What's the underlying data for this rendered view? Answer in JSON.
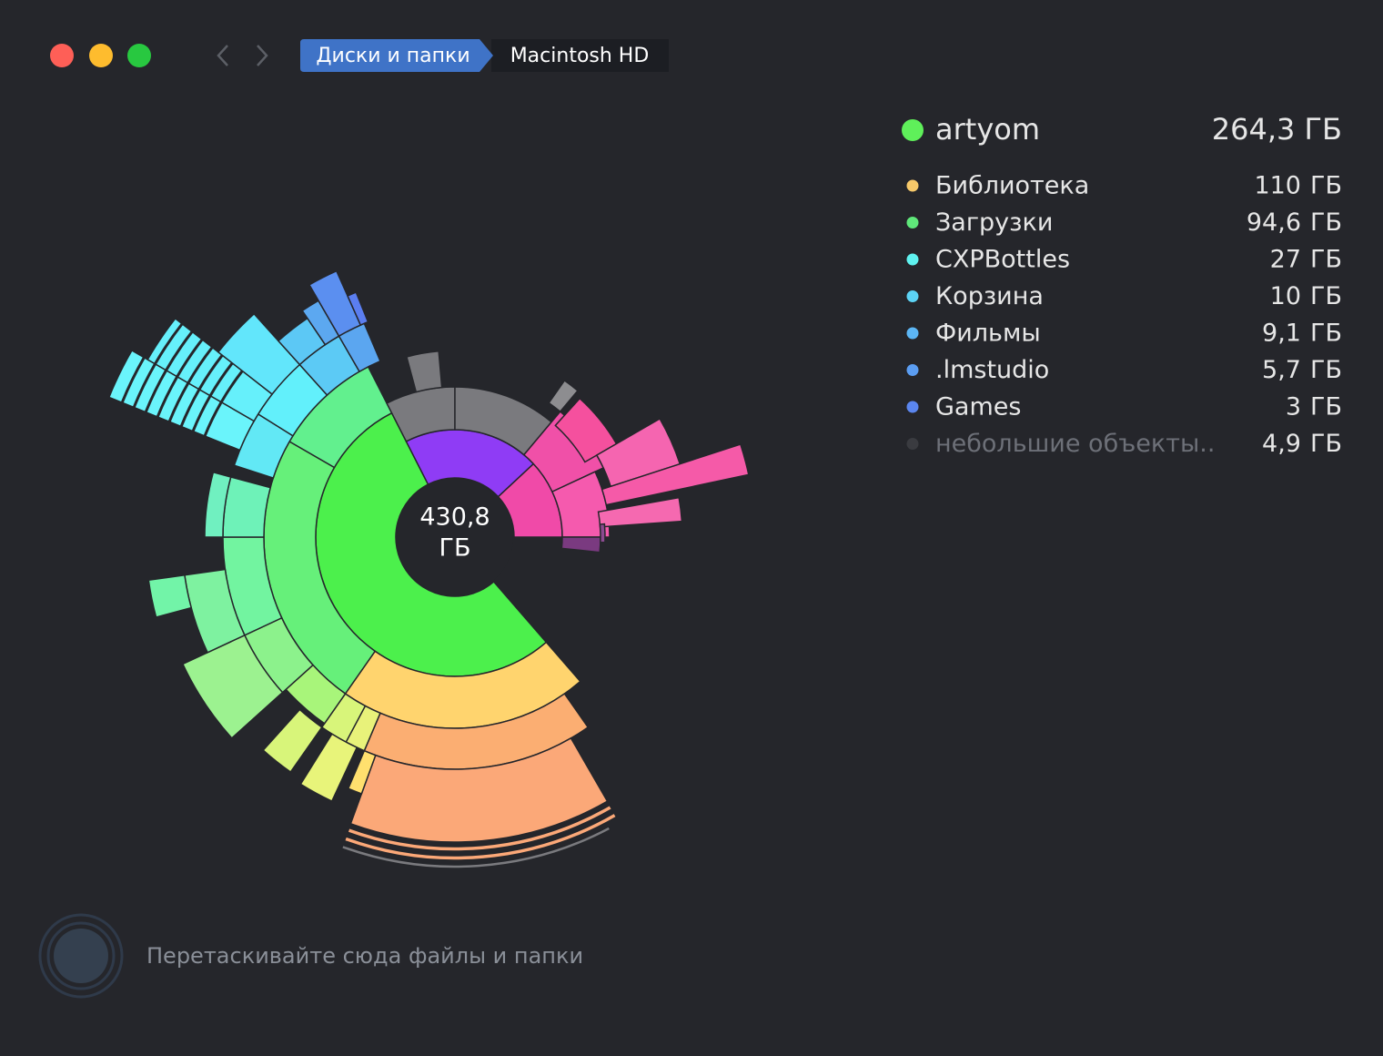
{
  "window": {
    "breadcrumb": [
      "Диски и папки",
      "Macintosh HD"
    ]
  },
  "center": {
    "value": "430,8",
    "unit": "ГБ"
  },
  "selection": {
    "name": "artyom",
    "size": "264,3 ГБ",
    "color": "#5ff05a"
  },
  "items": [
    {
      "name": "Библиотека",
      "size": "110",
      "unit": "ГБ",
      "color": "#f7c96a"
    },
    {
      "name": "Загрузки",
      "size": "94,6",
      "unit": "ГБ",
      "color": "#5fe87a"
    },
    {
      "name": "CXPBottles",
      "size": "27",
      "unit": "ГБ",
      "color": "#5ff2f0"
    },
    {
      "name": "Корзина",
      "size": "10",
      "unit": "ГБ",
      "color": "#5cd3f5"
    },
    {
      "name": "Фильмы",
      "size": "9,1",
      "unit": "ГБ",
      "color": "#5cb6f5"
    },
    {
      "name": ".lmstudio",
      "size": "5,7",
      "unit": "ГБ",
      "color": "#5b9df2"
    },
    {
      "name": "Games",
      "size": "3",
      "unit": "ГБ",
      "color": "#5b86ef"
    },
    {
      "name": "небольшие объекты..",
      "size": "4,9",
      "unit": "ГБ",
      "color": "#3a3b40",
      "muted": true
    }
  ],
  "drop_hint": "Перетаскивайте сюда файлы и папки"
}
